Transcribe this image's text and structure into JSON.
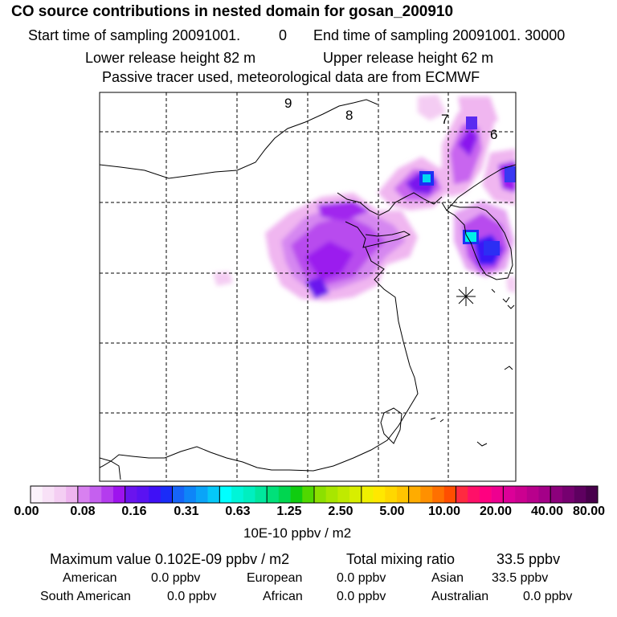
{
  "header": {
    "title": "CO  source contributions in nested domain for gosan_200910",
    "start_label": "Start time of sampling 20091001.",
    "start_hour": "0",
    "end_label": "End time of sampling 20091001. 30000",
    "lower_label": "Lower release height   82 m",
    "upper_label": "Upper release height   62 m",
    "tracer_note": "Passive tracer used, meteorological data are from ECMWF"
  },
  "map": {
    "contour_labels": [
      "9",
      "8",
      "7",
      "6"
    ],
    "receptor_marker": "asterisk-marker"
  },
  "colorbar": {
    "tick_labels": [
      "0.00",
      "0.08",
      "0.16",
      "0.31",
      "0.63",
      "1.25",
      "2.50",
      "5.00",
      "10.00",
      "20.00",
      "40.00",
      "80.00"
    ],
    "units": "10E-10 ppbv / m2",
    "colors": [
      "#fbf2fb",
      "#f8e1f7",
      "#f4cef3",
      "#eeb5ef",
      "#d880f0",
      "#c560ef",
      "#b43cee",
      "#9e13ee",
      "#6a14ee",
      "#5a12f2",
      "#3f10f6",
      "#1a2cf8",
      "#1665f8",
      "#0e85f8",
      "#0aa4f8",
      "#05c8f8",
      "#00ffff",
      "#00f5d8",
      "#00efc0",
      "#00e79e",
      "#00e07a",
      "#00d650",
      "#10cc10",
      "#50d800",
      "#8ce000",
      "#a8e600",
      "#c0ea00",
      "#d8ee00",
      "#f0f000",
      "#ffe800",
      "#ffd700",
      "#ffc400",
      "#ffac00",
      "#ff9000",
      "#ff7000",
      "#ff4e00",
      "#ff2a40",
      "#ff1068",
      "#ff0080",
      "#ee0090",
      "#dc0098",
      "#cc0090",
      "#b8008c",
      "#a40088",
      "#8c007c",
      "#760070",
      "#5e0060",
      "#48004c"
    ]
  },
  "summary": {
    "max_label": "Maximum value  0.102E-09 ppbv / m2",
    "total_label": "Total mixing ratio",
    "total_value": "33.5 ppbv",
    "regions": [
      {
        "name": "American",
        "value": "0.0 ppbv"
      },
      {
        "name": "European",
        "value": "0.0 ppbv"
      },
      {
        "name": "Asian",
        "value": "33.5 ppbv"
      },
      {
        "name": "South American",
        "value": "0.0 ppbv"
      },
      {
        "name": "African",
        "value": "0.0 ppbv"
      },
      {
        "name": "Australian",
        "value": "0.0 ppbv"
      }
    ]
  }
}
